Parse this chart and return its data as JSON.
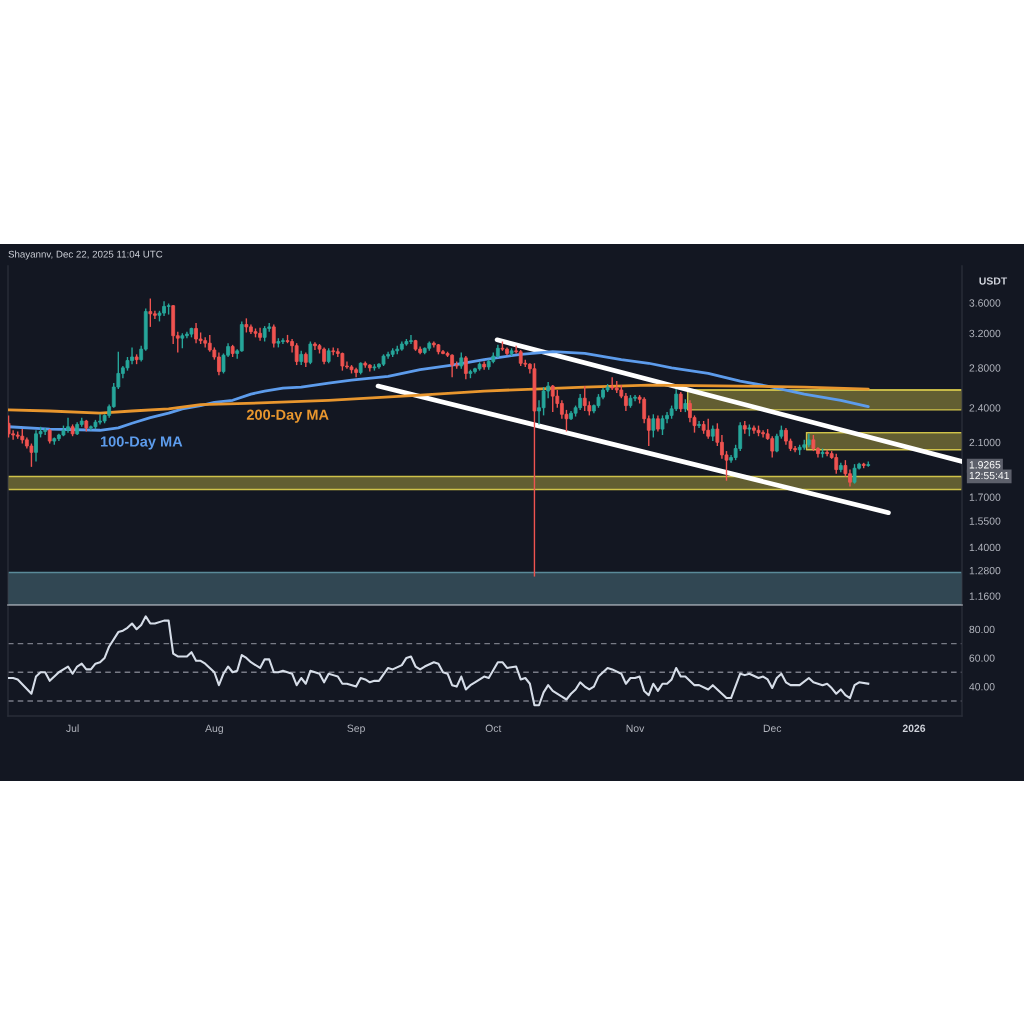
{
  "chart_data": [
    {
      "type": "candlestick",
      "title": "Shayannv, Dec 22, 2025 11:04 UTC",
      "ylabel": "USDT",
      "x": [
        "2025-06-17",
        "2025-06-18",
        "2025-06-19",
        "2025-06-20",
        "2025-06-21",
        "2025-06-22",
        "2025-06-23",
        "2025-06-24",
        "2025-06-25",
        "2025-06-26",
        "2025-06-27",
        "2025-06-28",
        "2025-06-29",
        "2025-06-30",
        "2025-07-01",
        "2025-07-02",
        "2025-07-03",
        "2025-07-04",
        "2025-07-05",
        "2025-07-06",
        "2025-07-07",
        "2025-07-08",
        "2025-07-09",
        "2025-07-10",
        "2025-07-11",
        "2025-07-12",
        "2025-07-13",
        "2025-07-14",
        "2025-07-15",
        "2025-07-16",
        "2025-07-17",
        "2025-07-18",
        "2025-07-19",
        "2025-07-20",
        "2025-07-21",
        "2025-07-22",
        "2025-07-23",
        "2025-07-24",
        "2025-07-25",
        "2025-07-26",
        "2025-07-27",
        "2025-07-28",
        "2025-07-29",
        "2025-07-30",
        "2025-07-31",
        "2025-08-01",
        "2025-08-02",
        "2025-08-03",
        "2025-08-04",
        "2025-08-05",
        "2025-08-06",
        "2025-08-07",
        "2025-08-08",
        "2025-08-09",
        "2025-08-10",
        "2025-08-11",
        "2025-08-12",
        "2025-08-13",
        "2025-08-14",
        "2025-08-15",
        "2025-08-16",
        "2025-08-17",
        "2025-08-18",
        "2025-08-19",
        "2025-08-20",
        "2025-08-21",
        "2025-08-22",
        "2025-08-23",
        "2025-08-24",
        "2025-08-25",
        "2025-08-26",
        "2025-08-27",
        "2025-08-28",
        "2025-08-29",
        "2025-08-30",
        "2025-08-31",
        "2025-09-01",
        "2025-09-02",
        "2025-09-03",
        "2025-09-04",
        "2025-09-05",
        "2025-09-06",
        "2025-09-07",
        "2025-09-08",
        "2025-09-09",
        "2025-09-10",
        "2025-09-11",
        "2025-09-12",
        "2025-09-13",
        "2025-09-14",
        "2025-09-15",
        "2025-09-16",
        "2025-09-17",
        "2025-09-18",
        "2025-09-19",
        "2025-09-20",
        "2025-09-21",
        "2025-09-22",
        "2025-09-23",
        "2025-09-24",
        "2025-09-25",
        "2025-09-26",
        "2025-09-27",
        "2025-09-28",
        "2025-09-29",
        "2025-09-30",
        "2025-10-01",
        "2025-10-02",
        "2025-10-03",
        "2025-10-04",
        "2025-10-05",
        "2025-10-06",
        "2025-10-07",
        "2025-10-08",
        "2025-10-09",
        "2025-10-10",
        "2025-10-11",
        "2025-10-12",
        "2025-10-13",
        "2025-10-14",
        "2025-10-15",
        "2025-10-16",
        "2025-10-17",
        "2025-10-18",
        "2025-10-19",
        "2025-10-20",
        "2025-10-21",
        "2025-10-22",
        "2025-10-23",
        "2025-10-24",
        "2025-10-25",
        "2025-10-26",
        "2025-10-27",
        "2025-10-28",
        "2025-10-29",
        "2025-10-30",
        "2025-10-31",
        "2025-11-01",
        "2025-11-02",
        "2025-11-03",
        "2025-11-04",
        "2025-11-05",
        "2025-11-06",
        "2025-11-07",
        "2025-11-08",
        "2025-11-09",
        "2025-11-10",
        "2025-11-11",
        "2025-11-12",
        "2025-11-13",
        "2025-11-14",
        "2025-11-15",
        "2025-11-16",
        "2025-11-17",
        "2025-11-18",
        "2025-11-19",
        "2025-11-20",
        "2025-11-21",
        "2025-11-22",
        "2025-11-23",
        "2025-11-24",
        "2025-11-25",
        "2025-11-26",
        "2025-11-27",
        "2025-11-28",
        "2025-11-29",
        "2025-11-30",
        "2025-12-01",
        "2025-12-02",
        "2025-12-03",
        "2025-12-04",
        "2025-12-05",
        "2025-12-06",
        "2025-12-07",
        "2025-12-08",
        "2025-12-09",
        "2025-12-10",
        "2025-12-11",
        "2025-12-12",
        "2025-12-13",
        "2025-12-14",
        "2025-12-15",
        "2025-12-16",
        "2025-12-17",
        "2025-12-18",
        "2025-12-19",
        "2025-12-20",
        "2025-12-21",
        "2025-12-22"
      ],
      "ohlc": [
        [
          2.26,
          2.33,
          2.14,
          2.17
        ],
        [
          2.17,
          2.2,
          2.12,
          2.16
        ],
        [
          2.16,
          2.19,
          2.13,
          2.15
        ],
        [
          2.15,
          2.21,
          2.09,
          2.12
        ],
        [
          2.12,
          2.14,
          2.05,
          2.07
        ],
        [
          2.07,
          2.09,
          1.91,
          2.02
        ],
        [
          2.02,
          2.2,
          1.95,
          2.17
        ],
        [
          2.17,
          2.23,
          2.14,
          2.19
        ],
        [
          2.19,
          2.22,
          2.16,
          2.2
        ],
        [
          2.2,
          2.21,
          2.09,
          2.11
        ],
        [
          2.11,
          2.14,
          2.08,
          2.13
        ],
        [
          2.13,
          2.17,
          2.11,
          2.16
        ],
        [
          2.16,
          2.24,
          2.15,
          2.2
        ],
        [
          2.2,
          2.31,
          2.18,
          2.23
        ],
        [
          2.23,
          2.25,
          2.15,
          2.17
        ],
        [
          2.17,
          2.27,
          2.16,
          2.25
        ],
        [
          2.25,
          2.31,
          2.23,
          2.28
        ],
        [
          2.28,
          2.29,
          2.19,
          2.22
        ],
        [
          2.22,
          2.24,
          2.2,
          2.23
        ],
        [
          2.23,
          2.29,
          2.21,
          2.27
        ],
        [
          2.27,
          2.34,
          2.25,
          2.28
        ],
        [
          2.28,
          2.34,
          2.26,
          2.33
        ],
        [
          2.33,
          2.43,
          2.31,
          2.41
        ],
        [
          2.41,
          2.64,
          2.4,
          2.6
        ],
        [
          2.6,
          2.98,
          2.58,
          2.74
        ],
        [
          2.74,
          2.82,
          2.69,
          2.8
        ],
        [
          2.8,
          2.92,
          2.77,
          2.88
        ],
        [
          2.88,
          3.03,
          2.84,
          2.92
        ],
        [
          2.92,
          2.95,
          2.84,
          2.89
        ],
        [
          2.89,
          3.05,
          2.87,
          3.01
        ],
        [
          3.01,
          3.52,
          2.99,
          3.48
        ],
        [
          3.48,
          3.66,
          3.28,
          3.45
        ],
        [
          3.45,
          3.49,
          3.38,
          3.43
        ],
        [
          3.43,
          3.49,
          3.35,
          3.46
        ],
        [
          3.46,
          3.62,
          3.42,
          3.55
        ],
        [
          3.55,
          3.59,
          3.44,
          3.56
        ],
        [
          3.56,
          3.57,
          3.07,
          3.17
        ],
        [
          3.17,
          3.22,
          2.97,
          3.14
        ],
        [
          3.14,
          3.2,
          3.02,
          3.17
        ],
        [
          3.17,
          3.22,
          3.14,
          3.19
        ],
        [
          3.19,
          3.27,
          3.15,
          3.26
        ],
        [
          3.26,
          3.33,
          3.08,
          3.13
        ],
        [
          3.13,
          3.21,
          3.07,
          3.11
        ],
        [
          3.11,
          3.15,
          3.03,
          3.08
        ],
        [
          3.08,
          3.18,
          2.98,
          3.0
        ],
        [
          3.0,
          3.03,
          2.89,
          2.92
        ],
        [
          2.92,
          2.97,
          2.72,
          2.76
        ],
        [
          2.76,
          2.96,
          2.74,
          2.94
        ],
        [
          2.94,
          3.08,
          2.92,
          3.04
        ],
        [
          3.04,
          3.06,
          2.92,
          2.96
        ],
        [
          2.96,
          3.01,
          2.9,
          2.99
        ],
        [
          2.99,
          3.35,
          2.98,
          3.31
        ],
        [
          3.31,
          3.39,
          3.21,
          3.28
        ],
        [
          3.28,
          3.31,
          3.19,
          3.22
        ],
        [
          3.22,
          3.26,
          3.15,
          3.2
        ],
        [
          3.2,
          3.27,
          3.11,
          3.15
        ],
        [
          3.15,
          3.29,
          3.1,
          3.26
        ],
        [
          3.26,
          3.33,
          3.22,
          3.28
        ],
        [
          3.28,
          3.31,
          3.03,
          3.08
        ],
        [
          3.08,
          3.14,
          3.03,
          3.1
        ],
        [
          3.1,
          3.14,
          3.07,
          3.11
        ],
        [
          3.11,
          3.18,
          3.08,
          3.1
        ],
        [
          3.1,
          3.13,
          2.97,
          3.05
        ],
        [
          3.05,
          3.08,
          2.83,
          2.87
        ],
        [
          2.87,
          2.99,
          2.83,
          2.95
        ],
        [
          2.95,
          2.97,
          2.81,
          2.86
        ],
        [
          2.86,
          3.1,
          2.84,
          3.07
        ],
        [
          3.07,
          3.09,
          3.0,
          3.05
        ],
        [
          3.05,
          3.07,
          2.96,
          3.01
        ],
        [
          3.01,
          3.03,
          2.84,
          2.87
        ],
        [
          2.87,
          3.02,
          2.85,
          2.99
        ],
        [
          2.99,
          3.03,
          2.94,
          2.98
        ],
        [
          2.98,
          3.02,
          2.92,
          2.96
        ],
        [
          2.96,
          2.97,
          2.77,
          2.82
        ],
        [
          2.82,
          2.87,
          2.79,
          2.81
        ],
        [
          2.81,
          2.83,
          2.74,
          2.78
        ],
        [
          2.78,
          2.8,
          2.7,
          2.75
        ],
        [
          2.75,
          2.86,
          2.73,
          2.85
        ],
        [
          2.85,
          2.87,
          2.8,
          2.83
        ],
        [
          2.83,
          2.84,
          2.76,
          2.8
        ],
        [
          2.8,
          2.84,
          2.77,
          2.81
        ],
        [
          2.81,
          2.85,
          2.79,
          2.84
        ],
        [
          2.84,
          2.95,
          2.82,
          2.93
        ],
        [
          2.93,
          2.98,
          2.9,
          2.95
        ],
        [
          2.95,
          3.02,
          2.92,
          2.99
        ],
        [
          2.99,
          3.05,
          2.95,
          3.01
        ],
        [
          3.01,
          3.1,
          2.99,
          3.07
        ],
        [
          3.07,
          3.13,
          3.05,
          3.1
        ],
        [
          3.1,
          3.18,
          3.07,
          3.11
        ],
        [
          3.11,
          3.12,
          2.99,
          3.01
        ],
        [
          3.01,
          3.04,
          2.95,
          2.97
        ],
        [
          2.97,
          3.03,
          2.95,
          3.02
        ],
        [
          3.02,
          3.1,
          2.99,
          3.08
        ],
        [
          3.08,
          3.1,
          3.03,
          3.06
        ],
        [
          3.06,
          3.07,
          2.95,
          2.98
        ],
        [
          2.98,
          3.0,
          2.95,
          2.96
        ],
        [
          2.96,
          2.98,
          2.92,
          2.94
        ],
        [
          2.94,
          2.95,
          2.7,
          2.83
        ],
        [
          2.83,
          2.87,
          2.79,
          2.82
        ],
        [
          2.82,
          2.97,
          2.79,
          2.91
        ],
        [
          2.91,
          2.93,
          2.68,
          2.74
        ],
        [
          2.74,
          2.78,
          2.69,
          2.76
        ],
        [
          2.76,
          2.8,
          2.74,
          2.79
        ],
        [
          2.79,
          2.86,
          2.77,
          2.84
        ],
        [
          2.84,
          2.87,
          2.78,
          2.81
        ],
        [
          2.81,
          2.89,
          2.78,
          2.87
        ],
        [
          2.87,
          2.97,
          2.85,
          2.93
        ],
        [
          2.93,
          3.06,
          2.91,
          3.02
        ],
        [
          3.02,
          3.1,
          2.99,
          3.01
        ],
        [
          3.01,
          3.03,
          2.94,
          2.96
        ],
        [
          2.96,
          3.02,
          2.93,
          2.99
        ],
        [
          2.99,
          3.05,
          2.96,
          2.98
        ],
        [
          2.98,
          3.0,
          2.82,
          2.85
        ],
        [
          2.85,
          2.89,
          2.81,
          2.84
        ],
        [
          2.84,
          2.85,
          2.74,
          2.79
        ],
        [
          2.79,
          2.85,
          1.25,
          2.37
        ],
        [
          2.37,
          2.47,
          2.25,
          2.4
        ],
        [
          2.4,
          2.6,
          2.33,
          2.56
        ],
        [
          2.56,
          2.65,
          2.49,
          2.61
        ],
        [
          2.61,
          2.62,
          2.36,
          2.51
        ],
        [
          2.51,
          2.57,
          2.4,
          2.44
        ],
        [
          2.44,
          2.47,
          2.3,
          2.34
        ],
        [
          2.34,
          2.38,
          2.19,
          2.3
        ],
        [
          2.3,
          2.37,
          2.29,
          2.35
        ],
        [
          2.35,
          2.42,
          2.32,
          2.4
        ],
        [
          2.4,
          2.53,
          2.38,
          2.49
        ],
        [
          2.49,
          2.61,
          2.37,
          2.42
        ],
        [
          2.42,
          2.46,
          2.33,
          2.37
        ],
        [
          2.37,
          2.43,
          2.35,
          2.42
        ],
        [
          2.42,
          2.53,
          2.4,
          2.5
        ],
        [
          2.5,
          2.59,
          2.48,
          2.57
        ],
        [
          2.57,
          2.63,
          2.55,
          2.6
        ],
        [
          2.6,
          2.7,
          2.57,
          2.59
        ],
        [
          2.59,
          2.66,
          2.54,
          2.57
        ],
        [
          2.57,
          2.62,
          2.49,
          2.51
        ],
        [
          2.51,
          2.54,
          2.37,
          2.42
        ],
        [
          2.42,
          2.52,
          2.4,
          2.49
        ],
        [
          2.49,
          2.52,
          2.46,
          2.5
        ],
        [
          2.5,
          2.52,
          2.44,
          2.48
        ],
        [
          2.48,
          2.5,
          2.26,
          2.3
        ],
        [
          2.3,
          2.33,
          2.07,
          2.2
        ],
        [
          2.2,
          2.34,
          2.14,
          2.3
        ],
        [
          2.3,
          2.33,
          2.19,
          2.21
        ],
        [
          2.21,
          2.33,
          2.16,
          2.3
        ],
        [
          2.3,
          2.36,
          2.26,
          2.33
        ],
        [
          2.33,
          2.42,
          2.3,
          2.39
        ],
        [
          2.39,
          2.58,
          2.37,
          2.53
        ],
        [
          2.53,
          2.55,
          2.36,
          2.39
        ],
        [
          2.39,
          2.48,
          2.36,
          2.44
        ],
        [
          2.44,
          2.47,
          2.27,
          2.31
        ],
        [
          2.31,
          2.33,
          2.18,
          2.24
        ],
        [
          2.24,
          2.28,
          2.22,
          2.25
        ],
        [
          2.25,
          2.28,
          2.17,
          2.2
        ],
        [
          2.2,
          2.3,
          2.13,
          2.15
        ],
        [
          2.15,
          2.24,
          2.11,
          2.21
        ],
        [
          2.21,
          2.26,
          2.07,
          2.1
        ],
        [
          2.1,
          2.16,
          1.97,
          2.0
        ],
        [
          2.0,
          2.03,
          1.81,
          1.96
        ],
        [
          1.96,
          2.0,
          1.94,
          1.98
        ],
        [
          1.98,
          2.08,
          1.96,
          2.05
        ],
        [
          2.05,
          2.27,
          2.03,
          2.24
        ],
        [
          2.24,
          2.28,
          2.17,
          2.21
        ],
        [
          2.21,
          2.25,
          2.15,
          2.22
        ],
        [
          2.22,
          2.24,
          2.17,
          2.2
        ],
        [
          2.2,
          2.24,
          2.15,
          2.18
        ],
        [
          2.18,
          2.2,
          2.14,
          2.17
        ],
        [
          2.17,
          2.21,
          2.12,
          2.13
        ],
        [
          2.13,
          2.15,
          1.98,
          2.03
        ],
        [
          2.03,
          2.17,
          2.02,
          2.15
        ],
        [
          2.15,
          2.24,
          2.13,
          2.2
        ],
        [
          2.2,
          2.22,
          2.08,
          2.11
        ],
        [
          2.11,
          2.13,
          2.03,
          2.05
        ],
        [
          2.05,
          2.07,
          2.02,
          2.04
        ],
        [
          2.04,
          2.08,
          2.0,
          2.06
        ],
        [
          2.06,
          2.12,
          2.04,
          2.08
        ],
        [
          2.08,
          2.17,
          2.06,
          2.12
        ],
        [
          2.12,
          2.16,
          2.03,
          2.05
        ],
        [
          2.05,
          2.06,
          1.98,
          2.01
        ],
        [
          2.01,
          2.05,
          1.98,
          2.02
        ],
        [
          2.02,
          2.04,
          1.99,
          2.01
        ],
        [
          2.01,
          2.03,
          1.97,
          1.98
        ],
        [
          1.98,
          2.01,
          1.86,
          1.89
        ],
        [
          1.89,
          1.94,
          1.87,
          1.92
        ],
        [
          1.92,
          1.96,
          1.84,
          1.86
        ],
        [
          1.86,
          1.89,
          1.77,
          1.8
        ],
        [
          1.8,
          1.93,
          1.79,
          1.9
        ],
        [
          1.9,
          1.94,
          1.89,
          1.93
        ],
        [
          1.93,
          1.94,
          1.9,
          1.92
        ],
        [
          1.92,
          1.95,
          1.91,
          1.9265
        ]
      ],
      "colors": [
        "#ef5350",
        "#ef5350",
        "#ef5350",
        "#ef5350",
        "#ef5350",
        "#ef5350",
        "#26a69a",
        "#26a69a",
        "#26a69a",
        "#ef5350",
        "#26a69a",
        "#26a69a",
        "#26a69a",
        "#26a69a",
        "#ef5350",
        "#26a69a",
        "#26a69a",
        "#ef5350",
        "#26a69a",
        "#26a69a",
        "#26a69a",
        "#26a69a",
        "#26a69a",
        "#26a69a",
        "#26a69a",
        "#26a69a",
        "#26a69a",
        "#26a69a",
        "#ef5350",
        "#26a69a",
        "#26a69a",
        "#ef5350",
        "#ef5350",
        "#26a69a",
        "#26a69a",
        "#26a69a",
        "#ef5350",
        "#ef5350",
        "#26a69a",
        "#26a69a",
        "#26a69a",
        "#ef5350",
        "#ef5350",
        "#ef5350",
        "#ef5350",
        "#ef5350",
        "#ef5350",
        "#26a69a",
        "#26a69a",
        "#ef5350",
        "#26a69a",
        "#26a69a",
        "#ef5350",
        "#ef5350",
        "#ef5350",
        "#ef5350",
        "#26a69a",
        "#26a69a",
        "#ef5350",
        "#26a69a",
        "#26a69a",
        "#ef5350",
        "#ef5350",
        "#ef5350",
        "#26a69a",
        "#ef5350",
        "#26a69a",
        "#ef5350",
        "#ef5350",
        "#ef5350",
        "#26a69a",
        "#ef5350",
        "#ef5350",
        "#ef5350",
        "#ef5350",
        "#ef5350",
        "#ef5350",
        "#26a69a",
        "#ef5350",
        "#ef5350",
        "#26a69a",
        "#26a69a",
        "#26a69a",
        "#26a69a",
        "#26a69a",
        "#26a69a",
        "#26a69a",
        "#26a69a",
        "#26a69a",
        "#ef5350",
        "#ef5350",
        "#26a69a",
        "#26a69a",
        "#ef5350",
        "#ef5350",
        "#ef5350",
        "#ef5350",
        "#ef5350",
        "#ef5350",
        "#26a69a",
        "#ef5350",
        "#26a69a",
        "#26a69a",
        "#26a69a",
        "#ef5350",
        "#26a69a",
        "#26a69a",
        "#26a69a",
        "#ef5350",
        "#ef5350",
        "#26a69a",
        "#ef5350",
        "#ef5350",
        "#ef5350",
        "#ef5350",
        "#ef5350",
        "#26a69a",
        "#26a69a",
        "#26a69a",
        "#ef5350",
        "#ef5350",
        "#ef5350",
        "#ef5350",
        "#26a69a",
        "#26a69a",
        "#26a69a",
        "#ef5350",
        "#ef5350",
        "#26a69a",
        "#26a69a",
        "#26a69a",
        "#26a69a",
        "#ef5350",
        "#ef5350",
        "#ef5350",
        "#ef5350",
        "#26a69a",
        "#26a69a",
        "#ef5350",
        "#ef5350",
        "#ef5350",
        "#26a69a",
        "#ef5350",
        "#26a69a",
        "#26a69a",
        "#26a69a",
        "#26a69a",
        "#ef5350",
        "#26a69a",
        "#ef5350",
        "#ef5350",
        "#26a69a",
        "#ef5350",
        "#ef5350",
        "#26a69a",
        "#ef5350",
        "#ef5350",
        "#ef5350",
        "#26a69a",
        "#26a69a",
        "#26a69a",
        "#ef5350",
        "#26a69a",
        "#ef5350",
        "#ef5350",
        "#ef5350",
        "#ef5350",
        "#ef5350",
        "#26a69a",
        "#26a69a",
        "#ef5350",
        "#ef5350",
        "#ef5350",
        "#26a69a",
        "#26a69a",
        "#26a69a",
        "#ef5350",
        "#ef5350",
        "#26a69a",
        "#ef5350",
        "#ef5350",
        "#ef5350",
        "#26a69a",
        "#ef5350",
        "#ef5350",
        "#26a69a",
        "#26a69a",
        "#ef5350",
        "#26a69a"
      ],
      "series": [
        {
          "name": "100-Day MA",
          "type": "line",
          "color": "#5d9cec",
          "x": [
            "2025-06-17",
            "2025-06-26",
            "2025-07-07",
            "2025-07-11",
            "2025-07-14",
            "2025-07-18",
            "2025-07-22",
            "2025-07-25",
            "2025-07-29",
            "2025-08-01",
            "2025-08-05",
            "2025-08-09",
            "2025-08-12",
            "2025-08-16",
            "2025-08-20",
            "2025-08-23",
            "2025-08-26",
            "2025-08-31",
            "2025-09-08",
            "2025-09-15",
            "2025-09-22",
            "2025-09-29",
            "2025-10-07",
            "2025-10-14",
            "2025-10-21",
            "2025-10-29",
            "2025-11-04",
            "2025-11-09",
            "2025-11-17",
            "2025-11-24",
            "2025-12-01",
            "2025-12-08",
            "2025-12-16",
            "2025-12-22"
          ],
          "values": [
            2.23,
            2.21,
            2.2,
            2.22,
            2.26,
            2.31,
            2.35,
            2.39,
            2.42,
            2.45,
            2.47,
            2.53,
            2.56,
            2.59,
            2.6,
            2.62,
            2.64,
            2.67,
            2.71,
            2.78,
            2.83,
            2.89,
            2.95,
            2.98,
            2.96,
            2.89,
            2.85,
            2.8,
            2.74,
            2.66,
            2.6,
            2.53,
            2.47,
            2.41
          ]
        },
        {
          "name": "200-Day MA",
          "type": "line",
          "color": "#e8962e",
          "x": [
            "2025-06-17",
            "2025-06-26",
            "2025-07-07",
            "2025-07-14",
            "2025-07-22",
            "2025-07-29",
            "2025-08-08",
            "2025-08-26",
            "2025-09-15",
            "2025-09-29",
            "2025-10-10",
            "2025-10-21",
            "2025-11-04",
            "2025-11-24",
            "2025-12-08",
            "2025-12-22"
          ],
          "values": [
            2.38,
            2.37,
            2.35,
            2.37,
            2.39,
            2.43,
            2.44,
            2.47,
            2.52,
            2.56,
            2.58,
            2.6,
            2.62,
            2.61,
            2.6,
            2.58
          ]
        },
        {
          "type": "line",
          "color": "#ffffff",
          "x": [
            "2025-10-01T20:00",
            "2026-01-11T12:00"
          ],
          "values": [
            3.12,
            1.95
          ]
        },
        {
          "type": "line",
          "color": "#ffffff",
          "x": [
            "2025-09-05T19:00",
            "2025-12-26T10:00"
          ],
          "values": [
            2.61,
            1.6
          ]
        },
        {
          "type": "line",
          "color": "#cfc24a",
          "x": [
            "2025-11-12T12:00",
            "2026-01-11T12:00"
          ],
          "values": [
            2.57,
            2.57
          ],
          "lower": [
            2.38,
            2.38
          ],
          "upper": [
            2.57,
            2.57
          ]
        },
        {
          "type": "line",
          "color": "#cfc24a",
          "x": [
            "2025-12-08T12:00",
            "2026-01-11T12:00"
          ],
          "values": [
            2.18,
            2.18
          ],
          "lower": [
            2.04,
            2.04
          ],
          "upper": [
            2.18,
            2.18
          ]
        }
      ],
      "bands": [
        {
          "axis": "y",
          "from": 1.75,
          "to": 1.84,
          "color": "#cfc24a"
        },
        {
          "axis": "y",
          "from": 1.12,
          "to": 1.27,
          "color": "#5a8a99"
        }
      ],
      "annotations": [
        "12:55:41"
      ],
      "log": "y",
      "xlim": [
        "2025-06-16T21:00",
        "2026-01-11T12:00"
      ],
      "ylim": [
        1.12,
        4.15
      ],
      "yticks": [
        {
          "value": 3.6,
          "label": "3.6000"
        },
        {
          "value": 3.2,
          "label": "3.2000"
        },
        {
          "value": 2.8,
          "label": "2.8000"
        },
        {
          "value": 2.4,
          "label": "2.4000"
        },
        {
          "value": 2.1,
          "label": "2.1000"
        },
        {
          "value": 1.9265,
          "label": "1.9265"
        },
        {
          "value": 1.7,
          "label": "1.7000"
        },
        {
          "value": 1.55,
          "label": "1.5500"
        },
        {
          "value": 1.4,
          "label": "1.4000"
        },
        {
          "value": 1.28,
          "label": "1.2800"
        },
        {
          "value": 1.16,
          "label": "1.1600"
        }
      ],
      "tick_labels": "y"
    },
    {
      "type": "line",
      "color": "#d6dde8",
      "x": [
        "2025-06-17",
        "2025-06-18",
        "2025-06-19",
        "2025-06-22",
        "2025-06-23",
        "2025-06-24",
        "2025-06-25",
        "2025-06-26",
        "2025-06-28",
        "2025-06-29",
        "2025-06-30",
        "2025-07-01",
        "2025-07-02",
        "2025-07-03",
        "2025-07-04",
        "2025-07-05",
        "2025-07-06",
        "2025-07-07",
        "2025-07-08",
        "2025-07-09",
        "2025-07-11",
        "2025-07-12",
        "2025-07-13",
        "2025-07-14",
        "2025-07-15",
        "2025-07-16",
        "2025-07-17",
        "2025-07-18",
        "2025-07-19",
        "2025-07-21",
        "2025-07-22",
        "2025-07-23",
        "2025-07-24",
        "2025-07-26",
        "2025-07-27",
        "2025-07-28",
        "2025-07-29",
        "2025-07-30",
        "2025-08-01",
        "2025-08-02",
        "2025-08-03",
        "2025-08-04",
        "2025-08-05",
        "2025-08-06",
        "2025-08-07",
        "2025-08-08",
        "2025-08-09",
        "2025-08-11",
        "2025-08-12",
        "2025-08-13",
        "2025-08-14",
        "2025-08-15",
        "2025-08-16",
        "2025-08-18",
        "2025-08-19",
        "2025-08-20",
        "2025-08-21",
        "2025-08-22",
        "2025-08-23",
        "2025-08-24",
        "2025-08-25",
        "2025-08-26",
        "2025-08-27",
        "2025-08-28",
        "2025-08-29",
        "2025-08-30",
        "2025-09-01",
        "2025-09-02",
        "2025-09-03",
        "2025-09-04",
        "2025-09-05",
        "2025-09-06",
        "2025-09-08",
        "2025-09-09",
        "2025-09-11",
        "2025-09-12",
        "2025-09-13",
        "2025-09-14",
        "2025-09-15",
        "2025-09-16",
        "2025-09-18",
        "2025-09-19",
        "2025-09-20",
        "2025-09-21",
        "2025-09-22",
        "2025-09-23",
        "2025-09-24",
        "2025-09-25",
        "2025-09-26",
        "2025-09-27",
        "2025-09-29",
        "2025-09-30",
        "2025-10-02",
        "2025-10-03",
        "2025-10-04",
        "2025-10-06",
        "2025-10-07",
        "2025-10-08",
        "2025-10-09",
        "2025-10-10",
        "2025-10-11",
        "2025-10-12",
        "2025-10-13",
        "2025-10-14",
        "2025-10-16",
        "2025-10-17",
        "2025-10-18",
        "2025-10-19",
        "2025-10-20",
        "2025-10-21",
        "2025-10-22",
        "2025-10-23",
        "2025-10-24",
        "2025-10-26",
        "2025-10-27",
        "2025-10-29",
        "2025-10-30",
        "2025-10-31",
        "2025-11-01",
        "2025-11-02",
        "2025-11-03",
        "2025-11-04",
        "2025-11-05",
        "2025-11-06",
        "2025-11-07",
        "2025-11-08",
        "2025-11-09",
        "2025-11-10",
        "2025-11-11",
        "2025-11-12",
        "2025-11-14",
        "2025-11-15",
        "2025-11-17",
        "2025-11-18",
        "2025-11-20",
        "2025-11-21",
        "2025-11-22",
        "2025-11-24",
        "2025-11-25",
        "2025-11-26",
        "2025-11-28",
        "2025-11-29",
        "2025-11-30",
        "2025-12-01",
        "2025-12-02",
        "2025-12-03",
        "2025-12-04",
        "2025-12-05",
        "2025-12-07",
        "2025-12-09",
        "2025-12-10",
        "2025-12-11",
        "2025-12-12",
        "2025-12-13",
        "2025-12-14",
        "2025-12-15",
        "2025-12-16",
        "2025-12-17",
        "2025-12-18",
        "2025-12-19",
        "2025-12-20",
        "2025-12-22"
      ],
      "values": [
        46,
        46,
        45,
        35,
        47,
        50,
        50,
        44,
        50,
        52,
        54,
        49,
        54,
        56,
        52,
        52,
        56,
        57,
        60,
        68,
        78,
        79,
        81,
        84,
        80,
        83,
        89,
        84,
        84,
        86,
        86,
        63,
        61,
        61,
        64,
        58,
        58,
        56,
        50,
        41,
        49,
        54,
        50,
        51,
        62,
        60,
        57,
        53,
        59,
        59,
        50,
        50,
        51,
        49,
        41,
        46,
        42,
        51,
        50,
        49,
        43,
        49,
        48,
        47,
        42,
        42,
        40,
        46,
        45,
        43,
        44,
        44,
        53,
        52,
        55,
        60,
        61,
        54,
        52,
        54,
        57,
        56,
        50,
        49,
        41,
        40,
        47,
        38,
        41,
        43,
        47,
        46,
        57,
        57,
        53,
        54,
        45,
        46,
        42,
        27,
        27,
        36,
        41,
        37,
        33,
        31,
        35,
        38,
        43,
        40,
        38,
        40,
        47,
        53,
        52,
        49,
        42,
        46,
        46,
        47,
        37,
        34,
        42,
        37,
        42,
        42,
        45,
        53,
        47,
        47,
        41,
        41,
        38,
        41,
        35,
        32,
        32,
        49,
        48,
        49,
        46,
        47,
        45,
        39,
        46,
        49,
        43,
        41,
        41,
        46,
        43,
        42,
        41,
        42,
        39,
        35,
        38,
        34,
        32,
        41,
        43,
        42
      ],
      "xlim": [
        "2025-06-16T21:00",
        "2026-01-11T12:00"
      ],
      "ylim": [
        19.5,
        95.5
      ],
      "yticks": [
        {
          "value": 80,
          "label": "80.00"
        },
        {
          "value": 60,
          "label": "60.00"
        },
        {
          "value": 40,
          "label": "40.00"
        }
      ],
      "xticks": [
        {
          "value": "2025-07-01",
          "label": "Jul"
        },
        {
          "value": "2025-08-01",
          "label": "Aug"
        },
        {
          "value": "2025-09-01",
          "label": "Sep"
        },
        {
          "value": "2025-10-01",
          "label": "Oct"
        },
        {
          "value": "2025-11-01",
          "label": "Nov"
        },
        {
          "value": "2025-12-01",
          "label": "Dec"
        },
        {
          "value": "2026-01-01",
          "label": "2026"
        }
      ],
      "ref_lines": [
        {
          "axis": "y",
          "value": 70,
          "line_style": "dashed",
          "color": "#787b86"
        },
        {
          "axis": "y",
          "value": 50,
          "line_style": "dashed",
          "color": "#787b86"
        },
        {
          "axis": "y",
          "value": 30,
          "line_style": "dashed",
          "color": "#787b86"
        }
      ]
    }
  ]
}
